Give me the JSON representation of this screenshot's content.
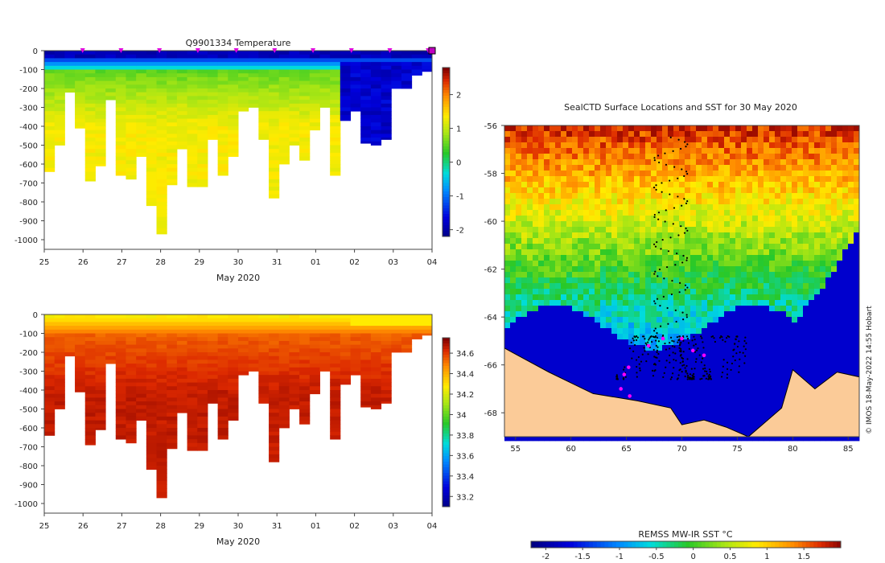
{
  "chart_data": [
    {
      "type": "heatmap",
      "title": "Q9901334  Temperature",
      "xlabel": "May 2020",
      "ylabel": "",
      "x_ticks": [
        "25",
        "26",
        "27",
        "28",
        "29",
        "30",
        "31",
        "01",
        "02",
        "03",
        "04"
      ],
      "y_ticks": [
        0,
        -100,
        -200,
        -300,
        -400,
        -500,
        -600,
        -700,
        -800,
        -900,
        -1000
      ],
      "ylim": [
        -1000,
        0
      ],
      "colorbar_ticks": [
        2,
        1,
        0,
        -1,
        -2
      ],
      "colorbar_range": [
        -2.2,
        2.8
      ],
      "max_depths": [
        640,
        500,
        220,
        410,
        690,
        610,
        260,
        660,
        680,
        560,
        820,
        970,
        710,
        520,
        720,
        720,
        470,
        660,
        560,
        320,
        300,
        470,
        780,
        600,
        500,
        580,
        420,
        300,
        660,
        370,
        320,
        490,
        500,
        470,
        200,
        200,
        130,
        110
      ]
    },
    {
      "type": "heatmap",
      "title": "",
      "xlabel": "May 2020",
      "ylabel": "",
      "x_ticks": [
        "25",
        "26",
        "27",
        "28",
        "29",
        "30",
        "31",
        "01",
        "02",
        "03",
        "04"
      ],
      "y_ticks": [
        0,
        -100,
        -200,
        -300,
        -400,
        -500,
        -600,
        -700,
        -800,
        -900,
        -1000
      ],
      "ylim": [
        -1000,
        0
      ],
      "colorbar_ticks": [
        34.6,
        34.4,
        34.2,
        34,
        33.8,
        33.6,
        33.4,
        33.2
      ],
      "colorbar_range": [
        33.1,
        34.75
      ],
      "max_depths": [
        640,
        500,
        220,
        410,
        690,
        610,
        260,
        660,
        680,
        560,
        820,
        970,
        710,
        520,
        720,
        720,
        470,
        660,
        560,
        320,
        300,
        470,
        780,
        600,
        500,
        580,
        420,
        300,
        660,
        370,
        320,
        490,
        500,
        470,
        200,
        200,
        130,
        110
      ]
    },
    {
      "type": "heatmap",
      "title": "SealCTD Surface Locations and SST for 30 May 2020",
      "x_ticks": [
        55,
        60,
        65,
        70,
        75,
        80,
        85
      ],
      "y_ticks": [
        -56,
        -58,
        -60,
        -62,
        -64,
        -66,
        -68
      ],
      "xlim": [
        54,
        86
      ],
      "ylim": [
        -69,
        -56
      ],
      "colorbar_label": "REMSS MW-IR SST °C",
      "colorbar_ticks": [
        -2,
        -1.5,
        -1,
        -0.5,
        0,
        0.5,
        1,
        1.5
      ],
      "colorbar_range": [
        -2.2,
        2
      ]
    }
  ],
  "credit": "© IMOS 18-May-2022 14:55 Hobart"
}
